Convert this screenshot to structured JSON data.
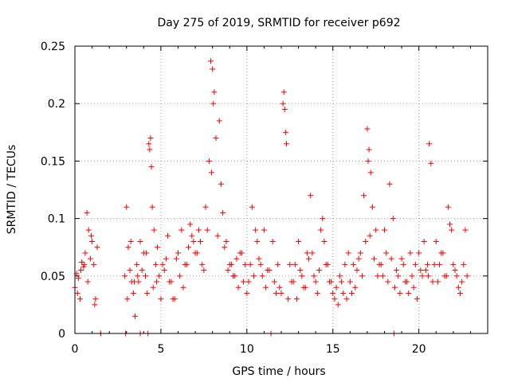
{
  "chart_data": {
    "type": "scatter",
    "title": "Day 275 of 2019, SRMTID for receiver p692",
    "xlabel": "GPS time / hours",
    "ylabel": "SRMTID / TECUs",
    "xlim": [
      0,
      24
    ],
    "ylim": [
      0,
      0.25
    ],
    "xticks": [
      0,
      5,
      10,
      15,
      20
    ],
    "xtick_labels": [
      "0",
      "5",
      "10",
      "15",
      "20"
    ],
    "yticks": [
      0,
      0.05,
      0.1,
      0.15,
      0.2,
      0.25
    ],
    "ytick_labels": [
      "0",
      "0.05",
      "0.1",
      "0.15",
      "0.2",
      "0.25"
    ],
    "grid": true,
    "marker": "plus",
    "color": "#ff0000",
    "series": [
      {
        "name": "SRMTID",
        "x": [
          0.0,
          0.1,
          0.2,
          0.3,
          0.4,
          0.5,
          0.6,
          0.7,
          0.8,
          0.9,
          1.0,
          1.1,
          1.2,
          1.3,
          1.5,
          2.9,
          3.0,
          3.1,
          3.2,
          3.3,
          3.4,
          3.5,
          3.6,
          3.7,
          3.8,
          3.9,
          4.0,
          4.1,
          4.2,
          4.3,
          4.35,
          4.4,
          4.45,
          4.5,
          4.6,
          4.7,
          4.8,
          4.9,
          5.0,
          5.2,
          5.4,
          5.6,
          5.8,
          6.0,
          6.2,
          6.4,
          6.6,
          6.8,
          7.0,
          7.2,
          7.4,
          7.6,
          7.8,
          7.9,
          8.0,
          8.1,
          8.2,
          8.3,
          8.5,
          8.7,
          8.9,
          9.1,
          9.3,
          9.5,
          9.7,
          9.9,
          10.1,
          10.3,
          10.5,
          10.7,
          10.9,
          11.1,
          11.3,
          11.5,
          11.7,
          11.9,
          12.1,
          12.15,
          12.2,
          12.25,
          12.3,
          12.5,
          12.7,
          12.9,
          13.1,
          13.3,
          13.5,
          13.7,
          13.9,
          14.1,
          14.3,
          14.5,
          14.7,
          14.9,
          15.1,
          15.3,
          15.5,
          15.7,
          15.9,
          16.1,
          16.3,
          16.5,
          16.7,
          16.9,
          17.0,
          17.1,
          17.2,
          17.3,
          17.5,
          17.7,
          17.9,
          18.1,
          18.3,
          18.5,
          18.7,
          18.9,
          19.1,
          19.3,
          19.5,
          19.7,
          19.9,
          20.1,
          20.3,
          20.5,
          20.6,
          20.7,
          20.9,
          21.1,
          21.3,
          21.5,
          21.7,
          21.9,
          22.1,
          22.3,
          22.5,
          22.7,
          22.8,
          1.5,
          2.95,
          3.8,
          4.25,
          11.4,
          18.55,
          0.15,
          0.35,
          0.55,
          0.75,
          0.95,
          1.15,
          3.05,
          3.25,
          3.45,
          3.65,
          4.15,
          4.55,
          4.75,
          5.1,
          5.3,
          5.5,
          5.7,
          5.9,
          6.1,
          6.3,
          6.5,
          6.7,
          6.9,
          7.1,
          7.3,
          7.5,
          7.7,
          7.95,
          8.05,
          8.4,
          8.6,
          8.8,
          9.0,
          9.2,
          9.4,
          9.6,
          9.8,
          10.0,
          10.2,
          10.4,
          10.6,
          10.8,
          11.0,
          11.2,
          11.6,
          11.8,
          12.0,
          12.4,
          12.6,
          12.8,
          13.0,
          13.2,
          13.4,
          13.6,
          13.8,
          14.0,
          14.2,
          14.4,
          14.6,
          14.8,
          15.0,
          15.2,
          15.4,
          15.6,
          15.8,
          16.0,
          16.2,
          16.4,
          16.6,
          16.8,
          17.05,
          17.15,
          17.4,
          17.6,
          17.8,
          18.0,
          18.2,
          18.4,
          18.6,
          18.8,
          19.0,
          19.2,
          19.4,
          19.6,
          19.8,
          20.0,
          20.2,
          20.4,
          20.55,
          20.8,
          21.0,
          21.2,
          21.4,
          21.6,
          21.8,
          22.0,
          22.2,
          22.4,
          22.6
        ],
        "y": [
          0.04,
          0.052,
          0.048,
          0.03,
          0.062,
          0.058,
          0.07,
          0.105,
          0.09,
          0.065,
          0.08,
          0.06,
          0.03,
          0.075,
          0.0,
          0.05,
          0.11,
          0.075,
          0.055,
          0.045,
          0.035,
          0.015,
          0.06,
          0.045,
          0.08,
          0.055,
          0.07,
          0.05,
          0.035,
          0.165,
          0.16,
          0.17,
          0.145,
          0.11,
          0.09,
          0.06,
          0.075,
          0.05,
          0.03,
          0.055,
          0.085,
          0.045,
          0.03,
          0.07,
          0.09,
          0.06,
          0.075,
          0.085,
          0.07,
          0.09,
          0.06,
          0.11,
          0.15,
          0.237,
          0.23,
          0.21,
          0.17,
          0.085,
          0.13,
          0.075,
          0.055,
          0.06,
          0.05,
          0.04,
          0.07,
          0.06,
          0.045,
          0.11,
          0.09,
          0.065,
          0.05,
          0.04,
          0.055,
          0.08,
          0.035,
          0.04,
          0.2,
          0.21,
          0.195,
          0.175,
          0.165,
          0.06,
          0.045,
          0.03,
          0.055,
          0.04,
          0.07,
          0.12,
          0.05,
          0.035,
          0.09,
          0.08,
          0.06,
          0.045,
          0.03,
          0.025,
          0.045,
          0.06,
          0.07,
          0.035,
          0.04,
          0.065,
          0.05,
          0.08,
          0.178,
          0.16,
          0.14,
          0.11,
          0.09,
          0.06,
          0.05,
          0.07,
          0.13,
          0.1,
          0.055,
          0.035,
          0.06,
          0.045,
          0.07,
          0.04,
          0.03,
          0.055,
          0.08,
          0.06,
          0.165,
          0.148,
          0.06,
          0.045,
          0.07,
          0.05,
          0.11,
          0.09,
          0.055,
          0.04,
          0.045,
          0.09,
          0.05,
          0.0,
          0.0,
          0.0,
          0.0,
          0.0,
          0.0,
          0.035,
          0.055,
          0.06,
          0.045,
          0.085,
          0.025,
          0.03,
          0.08,
          0.045,
          0.05,
          0.07,
          0.04,
          0.045,
          0.06,
          0.065,
          0.045,
          0.03,
          0.065,
          0.05,
          0.04,
          0.06,
          0.095,
          0.08,
          0.07,
          0.08,
          0.055,
          0.09,
          0.14,
          0.2,
          0.185,
          0.105,
          0.08,
          0.06,
          0.05,
          0.065,
          0.07,
          0.045,
          0.035,
          0.06,
          0.05,
          0.08,
          0.06,
          0.09,
          0.055,
          0.045,
          0.06,
          0.035,
          0.03,
          0.045,
          0.06,
          0.08,
          0.05,
          0.04,
          0.065,
          0.07,
          0.045,
          0.055,
          0.1,
          0.06,
          0.045,
          0.035,
          0.04,
          0.05,
          0.035,
          0.03,
          0.045,
          0.06,
          0.055,
          0.07,
          0.12,
          0.15,
          0.085,
          0.065,
          0.05,
          0.06,
          0.09,
          0.045,
          0.065,
          0.04,
          0.05,
          0.065,
          0.045,
          0.035,
          0.05,
          0.06,
          0.07,
          0.05,
          0.055,
          0.05,
          0.045,
          0.08,
          0.06,
          0.07,
          0.05,
          0.095,
          0.06,
          0.05,
          0.035,
          0.06
        ]
      }
    ]
  }
}
